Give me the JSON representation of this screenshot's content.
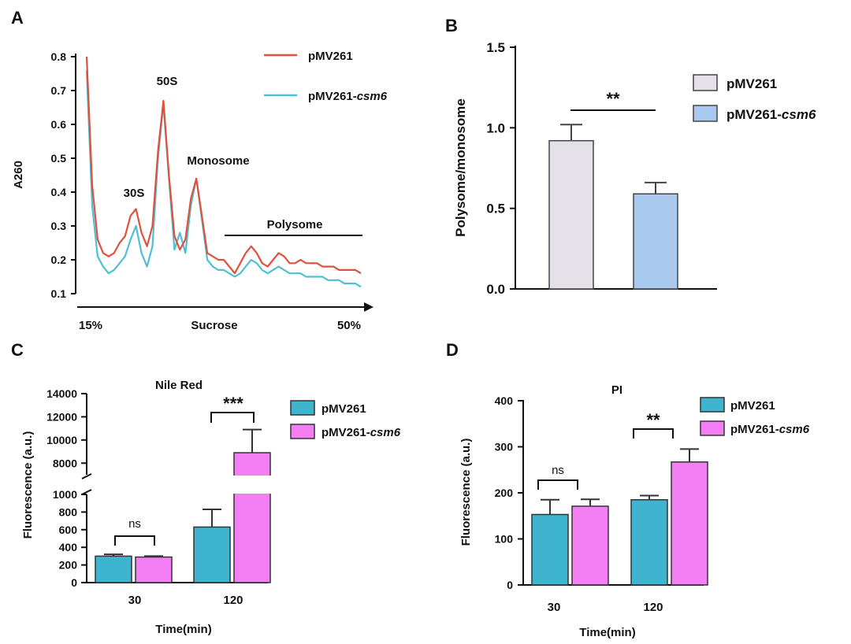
{
  "chart_data": [
    {
      "panel": "A",
      "type": "line",
      "title": "",
      "ylabel": "A260",
      "xlabel": "Sucrose",
      "x_start_label": "15%",
      "x_end_label": "50%",
      "ylim": [
        0.1,
        0.8
      ],
      "yticks": [
        "0.1",
        "0.2",
        "0.3",
        "0.4",
        "0.5",
        "0.6",
        "0.7",
        "0.8"
      ],
      "x": [
        0,
        2,
        4,
        6,
        8,
        10,
        12,
        14,
        16,
        18,
        20,
        22,
        24,
        26,
        28,
        30,
        32,
        34,
        36,
        38,
        40,
        42,
        44,
        46,
        48,
        50,
        52,
        54,
        56,
        58,
        60,
        62,
        64,
        66,
        68,
        70,
        72,
        74,
        76,
        78,
        80,
        82,
        84,
        86,
        88,
        90,
        92,
        94,
        96,
        98,
        100
      ],
      "series": [
        {
          "name": "pMV261",
          "color": "#e0513c",
          "values": [
            0.8,
            0.42,
            0.26,
            0.22,
            0.21,
            0.22,
            0.25,
            0.27,
            0.33,
            0.35,
            0.28,
            0.24,
            0.3,
            0.52,
            0.67,
            0.45,
            0.27,
            0.23,
            0.26,
            0.38,
            0.44,
            0.33,
            0.22,
            0.21,
            0.2,
            0.2,
            0.18,
            0.16,
            0.19,
            0.22,
            0.24,
            0.22,
            0.19,
            0.18,
            0.2,
            0.22,
            0.21,
            0.19,
            0.19,
            0.2,
            0.19,
            0.19,
            0.19,
            0.18,
            0.18,
            0.18,
            0.17,
            0.17,
            0.17,
            0.17,
            0.16
          ]
        },
        {
          "name": "pMV261-csm6",
          "color": "#4dbfd6",
          "values": [
            0.76,
            0.36,
            0.21,
            0.18,
            0.16,
            0.17,
            0.19,
            0.21,
            0.26,
            0.3,
            0.22,
            0.18,
            0.24,
            0.5,
            0.66,
            0.44,
            0.23,
            0.28,
            0.22,
            0.36,
            0.44,
            0.32,
            0.2,
            0.18,
            0.17,
            0.17,
            0.16,
            0.15,
            0.16,
            0.18,
            0.2,
            0.19,
            0.17,
            0.16,
            0.17,
            0.18,
            0.17,
            0.16,
            0.16,
            0.16,
            0.15,
            0.15,
            0.15,
            0.15,
            0.14,
            0.14,
            0.14,
            0.13,
            0.13,
            0.13,
            0.12
          ]
        }
      ],
      "annotations": [
        {
          "text": "30S",
          "x": 20,
          "y": 0.38
        },
        {
          "text": "50S",
          "x": 30,
          "y": 0.72
        },
        {
          "text": "Monosome",
          "x": 50,
          "y": 0.5
        },
        {
          "text": "Polysome",
          "x": 78,
          "y": 0.32
        }
      ],
      "polysome_range": [
        52,
        100
      ]
    },
    {
      "panel": "B",
      "type": "bar",
      "ylabel": "Polysome/monosome",
      "ylim": [
        0,
        1.5
      ],
      "yticks": [
        "0.0",
        "0.5",
        "1.0",
        "1.5"
      ],
      "categories": [
        "pMV261",
        "pMV261-csm6"
      ],
      "values": [
        0.92,
        0.59
      ],
      "errors": [
        0.1,
        0.07
      ],
      "colors": [
        "#e4e1e9",
        "#a9c9ee"
      ],
      "significance": "**"
    },
    {
      "panel": "C",
      "type": "bar",
      "title": "Nile Red",
      "ylabel": "Fluorescence  (a.u.)",
      "xlabel": "Time(min)",
      "broken_axis": {
        "lower": [
          0,
          1000
        ],
        "upper": [
          7000,
          14000
        ]
      },
      "yticks_lower": [
        "0",
        "200",
        "400",
        "600",
        "800",
        "1000"
      ],
      "yticks_upper": [
        "8000",
        "10000",
        "12000",
        "14000"
      ],
      "categories": [
        "30",
        "120"
      ],
      "series": [
        {
          "name": "pMV261",
          "color": "#3fb4cf",
          "values": [
            300,
            630
          ],
          "errors": [
            20,
            200
          ]
        },
        {
          "name": "pMV261-csm6",
          "color": "#f47ef3",
          "values": [
            290,
            8900
          ],
          "errors": [
            10,
            2000
          ]
        }
      ],
      "significance": [
        "ns",
        "***"
      ]
    },
    {
      "panel": "D",
      "type": "bar",
      "title": "PI",
      "ylabel": "Fluorescence  (a.u.)",
      "xlabel": "Time(min)",
      "ylim": [
        0,
        400
      ],
      "yticks": [
        "0",
        "100",
        "200",
        "300",
        "400"
      ],
      "categories": [
        "30",
        "120"
      ],
      "series": [
        {
          "name": "pMV261",
          "color": "#3fb4cf",
          "values": [
            153,
            185
          ],
          "errors": [
            32,
            9
          ]
        },
        {
          "name": "pMV261-csm6",
          "color": "#f47ef3",
          "values": [
            171,
            267
          ],
          "errors": [
            15,
            28
          ]
        }
      ],
      "significance": [
        "ns",
        "**"
      ]
    }
  ],
  "labels": {
    "panelA": "A",
    "panelB": "B",
    "panelC": "C",
    "panelD": "D",
    "legend_base": "pMV261",
    "legend_mut_prefix": "pMV261-",
    "legend_mut_suffix": "csm6"
  }
}
